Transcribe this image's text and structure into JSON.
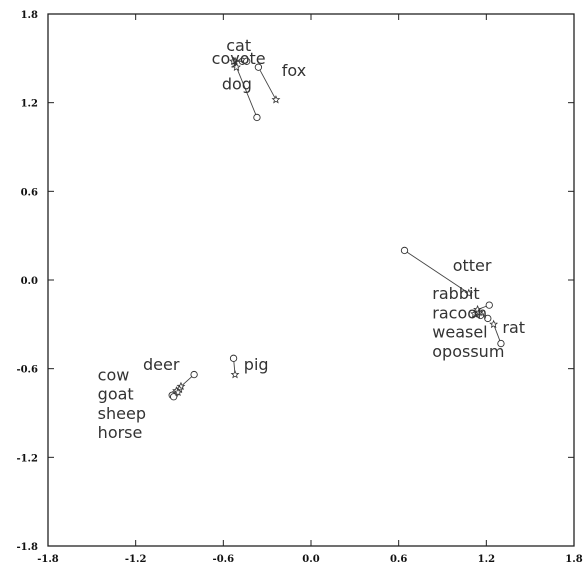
{
  "chart_data": {
    "type": "scatter",
    "title": "",
    "xlabel": "",
    "ylabel": "",
    "xlim": [
      -1.8,
      1.8
    ],
    "ylim": [
      -1.8,
      1.8
    ],
    "grid": false,
    "x_ticks": [
      "-1.8",
      "-1.2",
      "-0.6",
      "0.0",
      "0.6",
      "1.2",
      "1.8"
    ],
    "y_ticks": [
      "1.8",
      "1.2",
      "0.6",
      "0.0",
      "-0.6",
      "-1.2",
      "-1.8"
    ],
    "x_tick_values": [
      -1.8,
      -1.2,
      -0.6,
      0.0,
      0.6,
      1.2,
      1.8
    ],
    "y_tick_values": [
      1.8,
      1.2,
      0.6,
      0.0,
      -0.6,
      -1.2,
      -1.8
    ],
    "pairs": [
      {
        "circle": [
          -0.47,
          1.48
        ],
        "star": [
          -0.52,
          1.48
        ]
      },
      {
        "circle": [
          -0.44,
          1.48
        ],
        "star": [
          -0.53,
          1.48
        ]
      },
      {
        "circle": [
          -0.37,
          1.1
        ],
        "star": [
          -0.51,
          1.44
        ]
      },
      {
        "circle": [
          -0.36,
          1.44
        ],
        "star": [
          -0.24,
          1.22
        ]
      },
      {
        "circle": [
          0.64,
          0.2
        ],
        "star": [
          1.08,
          -0.09
        ]
      },
      {
        "circle": [
          1.22,
          -0.17
        ],
        "star": [
          1.14,
          -0.2
        ]
      },
      {
        "circle": [
          1.16,
          -0.24
        ],
        "star": [
          1.12,
          -0.23
        ]
      },
      {
        "circle": [
          1.21,
          -0.26
        ],
        "star": [
          1.15,
          -0.22
        ]
      },
      {
        "circle": [
          1.3,
          -0.43
        ],
        "star": [
          1.25,
          -0.3
        ]
      },
      {
        "circle": [
          -0.8,
          -0.64
        ],
        "star": [
          -0.89,
          -0.72
        ]
      },
      {
        "circle": [
          -0.93,
          -0.77
        ],
        "star": [
          -0.9,
          -0.74
        ]
      },
      {
        "circle": [
          -0.95,
          -0.78
        ],
        "star": [
          -0.92,
          -0.75
        ]
      },
      {
        "circle": [
          -0.94,
          -0.79
        ],
        "star": [
          -0.91,
          -0.76
        ]
      },
      {
        "circle": [
          -0.53,
          -0.53
        ],
        "star": [
          -0.52,
          -0.64
        ]
      }
    ],
    "labels": [
      {
        "text": "cat",
        "x": -0.58,
        "y": 1.55
      },
      {
        "text": "coyote",
        "x": -0.68,
        "y": 1.46
      },
      {
        "text": "dog",
        "x": -0.61,
        "y": 1.29
      },
      {
        "text": "fox",
        "x": -0.2,
        "y": 1.38
      },
      {
        "text": "otter",
        "x": 0.97,
        "y": 0.06
      },
      {
        "text": "rabbit",
        "x": 0.83,
        "y": -0.13
      },
      {
        "text": "racoon",
        "x": 0.83,
        "y": -0.26
      },
      {
        "text": "weasel",
        "x": 0.83,
        "y": -0.39
      },
      {
        "text": "opossum",
        "x": 0.83,
        "y": -0.52
      },
      {
        "text": "rat",
        "x": 1.31,
        "y": -0.36
      },
      {
        "text": "deer",
        "x": -1.15,
        "y": -0.61
      },
      {
        "text": "pig",
        "x": -0.46,
        "y": -0.61
      },
      {
        "text": "cow",
        "x": -1.46,
        "y": -0.68
      },
      {
        "text": "goat",
        "x": -1.46,
        "y": -0.81
      },
      {
        "text": "sheep",
        "x": -1.46,
        "y": -0.94
      },
      {
        "text": "horse",
        "x": -1.46,
        "y": -1.07
      }
    ]
  }
}
